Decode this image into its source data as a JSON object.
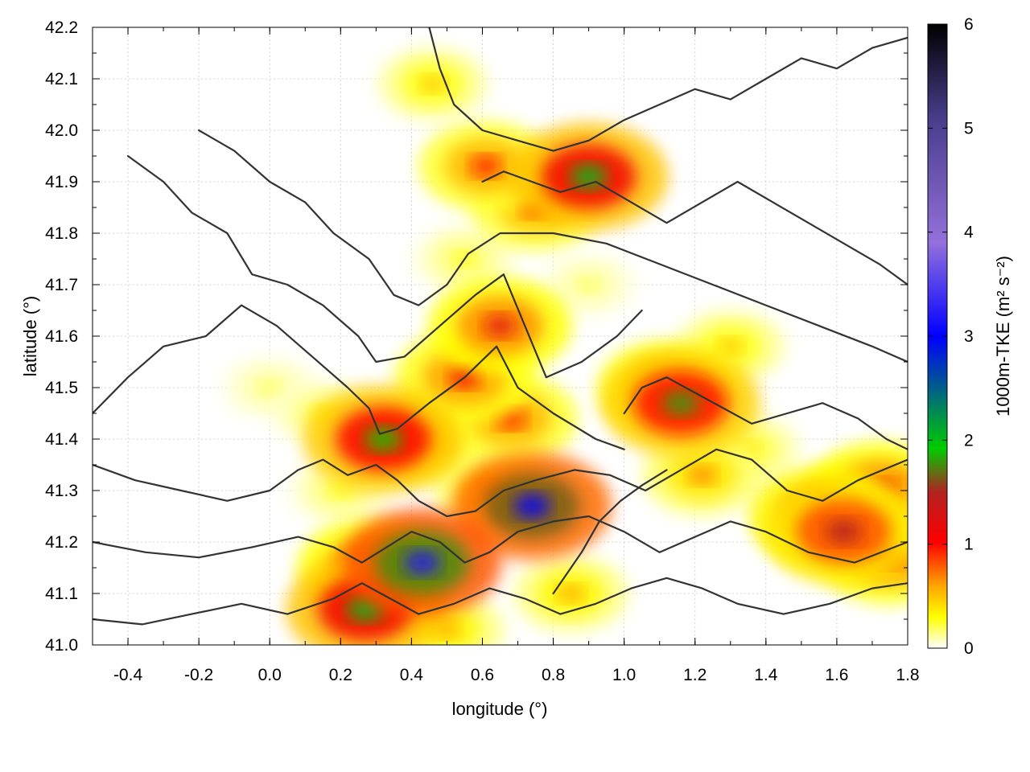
{
  "chart_data": {
    "type": "heatmap",
    "xlabel": "longitude (°)",
    "ylabel": "latitude (°)",
    "xlim": [
      -0.5,
      1.8
    ],
    "ylim": [
      41.0,
      42.2
    ],
    "x_ticks": [
      "-0.4",
      "-0.2",
      "0.0",
      "0.2",
      "0.4",
      "0.6",
      "0.8",
      "1.0",
      "1.2",
      "1.4",
      "1.6",
      "1.8"
    ],
    "x_tick_values": [
      -0.4,
      -0.2,
      0.0,
      0.2,
      0.4,
      0.6,
      0.8,
      1.0,
      1.2,
      1.4,
      1.6,
      1.8
    ],
    "y_ticks": [
      "41.0",
      "41.1",
      "41.2",
      "41.3",
      "41.4",
      "41.5",
      "41.6",
      "41.7",
      "41.8",
      "41.9",
      "42.0",
      "42.1",
      "42.2"
    ],
    "y_tick_values": [
      41.0,
      41.1,
      41.2,
      41.3,
      41.4,
      41.5,
      41.6,
      41.7,
      41.8,
      41.9,
      42.0,
      42.1,
      42.2
    ],
    "grid": true,
    "colorbar": {
      "label": "1000m-TKE (m² s⁻²)",
      "range": [
        0,
        6
      ],
      "ticks": [
        "0",
        "1",
        "2",
        "3",
        "4",
        "5",
        "6"
      ],
      "tick_values": [
        0,
        1,
        2,
        3,
        4,
        5,
        6
      ],
      "colors": [
        "#ffffff",
        "#ffff00",
        "#ffa500",
        "#ff0000",
        "#b22222",
        "#00cc00",
        "#0000ff",
        "#9370db",
        "#483d8b",
        "#000000"
      ]
    },
    "hotspots": [
      {
        "lon": 0.65,
        "lat": 41.62,
        "tke": 1.2
      },
      {
        "lon": 0.55,
        "lat": 41.52,
        "tke": 1.1
      },
      {
        "lon": 0.32,
        "lat": 41.4,
        "tke": 1.9
      },
      {
        "lon": 0.42,
        "lat": 41.4,
        "tke": 0.9
      },
      {
        "lon": 0.68,
        "lat": 41.44,
        "tke": 1.0
      },
      {
        "lon": 1.12,
        "lat": 41.5,
        "tke": 1.1
      },
      {
        "lon": 1.16,
        "lat": 41.47,
        "tke": 1.8
      },
      {
        "lon": 1.3,
        "lat": 41.58,
        "tke": 0.5
      },
      {
        "lon": 0.74,
        "lat": 41.27,
        "tke": 3.0
      },
      {
        "lon": 0.63,
        "lat": 41.3,
        "tke": 0.7
      },
      {
        "lon": 0.28,
        "lat": 41.15,
        "tke": 1.2
      },
      {
        "lon": 0.43,
        "lat": 41.16,
        "tke": 3.2
      },
      {
        "lon": 0.27,
        "lat": 41.07,
        "tke": 2.0
      },
      {
        "lon": 0.9,
        "lat": 41.91,
        "tke": 2.0
      },
      {
        "lon": 0.61,
        "lat": 41.93,
        "tke": 1.0
      },
      {
        "lon": 0.75,
        "lat": 41.85,
        "tke": 0.9
      },
      {
        "lon": 1.56,
        "lat": 41.25,
        "tke": 1.3
      },
      {
        "lon": 1.62,
        "lat": 41.22,
        "tke": 1.5
      },
      {
        "lon": 1.72,
        "lat": 41.3,
        "tke": 1.2
      },
      {
        "lon": 1.75,
        "lat": 41.17,
        "tke": 1.1
      },
      {
        "lon": 0.15,
        "lat": 41.45,
        "tke": 0.3
      },
      {
        "lon": 0.0,
        "lat": 41.5,
        "tke": 0.2
      },
      {
        "lon": 0.55,
        "lat": 41.75,
        "tke": 0.3
      },
      {
        "lon": 0.9,
        "lat": 41.7,
        "tke": 0.2
      },
      {
        "lon": 1.22,
        "lat": 41.33,
        "tke": 0.7
      },
      {
        "lon": 1.35,
        "lat": 41.38,
        "tke": 0.4
      },
      {
        "lon": 0.2,
        "lat": 41.3,
        "tke": 0.3
      },
      {
        "lon": 0.46,
        "lat": 42.09,
        "tke": 0.5
      },
      {
        "lon": 0.5,
        "lat": 41.03,
        "tke": 0.6
      },
      {
        "lon": 0.85,
        "lat": 41.1,
        "tke": 0.6
      }
    ],
    "contours": [
      [
        [
          -0.5,
          41.45
        ],
        [
          -0.4,
          41.52
        ],
        [
          -0.3,
          41.58
        ],
        [
          -0.18,
          41.6
        ],
        [
          -0.08,
          41.66
        ],
        [
          0.02,
          41.62
        ],
        [
          0.12,
          41.56
        ],
        [
          0.22,
          41.5
        ],
        [
          0.28,
          41.46
        ],
        [
          0.31,
          41.41
        ],
        [
          0.36,
          41.42
        ],
        [
          0.45,
          41.47
        ],
        [
          0.55,
          41.52
        ],
        [
          0.64,
          41.58
        ],
        [
          0.7,
          41.5
        ],
        [
          0.8,
          41.45
        ],
        [
          0.92,
          41.4
        ],
        [
          1.0,
          41.38
        ]
      ],
      [
        [
          -0.4,
          41.95
        ],
        [
          -0.3,
          41.9
        ],
        [
          -0.22,
          41.84
        ],
        [
          -0.12,
          41.8
        ],
        [
          -0.05,
          41.72
        ],
        [
          0.05,
          41.7
        ],
        [
          0.15,
          41.66
        ],
        [
          0.25,
          41.6
        ],
        [
          0.3,
          41.55
        ],
        [
          0.38,
          41.56
        ],
        [
          0.48,
          41.62
        ],
        [
          0.58,
          41.68
        ],
        [
          0.66,
          41.72
        ],
        [
          0.72,
          41.62
        ],
        [
          0.78,
          41.52
        ],
        [
          0.88,
          41.55
        ],
        [
          0.98,
          41.6
        ],
        [
          1.05,
          41.65
        ]
      ],
      [
        [
          -0.2,
          42.0
        ],
        [
          -0.1,
          41.96
        ],
        [
          0.0,
          41.9
        ],
        [
          0.1,
          41.86
        ],
        [
          0.18,
          41.8
        ],
        [
          0.28,
          41.75
        ],
        [
          0.35,
          41.68
        ],
        [
          0.42,
          41.66
        ],
        [
          0.5,
          41.7
        ],
        [
          0.56,
          41.76
        ],
        [
          0.65,
          41.8
        ],
        [
          0.8,
          41.8
        ],
        [
          0.95,
          41.78
        ],
        [
          1.1,
          41.74
        ],
        [
          1.25,
          41.7
        ],
        [
          1.4,
          41.66
        ],
        [
          1.55,
          41.62
        ],
        [
          1.7,
          41.58
        ],
        [
          1.8,
          41.55
        ]
      ],
      [
        [
          -0.5,
          41.35
        ],
        [
          -0.38,
          41.32
        ],
        [
          -0.25,
          41.3
        ],
        [
          -0.12,
          41.28
        ],
        [
          0.0,
          41.3
        ],
        [
          0.08,
          41.34
        ],
        [
          0.15,
          41.36
        ],
        [
          0.22,
          41.33
        ],
        [
          0.3,
          41.35
        ],
        [
          0.36,
          41.32
        ],
        [
          0.42,
          41.28
        ],
        [
          0.5,
          41.25
        ],
        [
          0.58,
          41.26
        ],
        [
          0.66,
          41.3
        ],
        [
          0.75,
          41.32
        ],
        [
          0.86,
          41.34
        ],
        [
          0.96,
          41.33
        ],
        [
          1.06,
          41.3
        ],
        [
          1.16,
          41.34
        ],
        [
          1.26,
          41.38
        ],
        [
          1.36,
          41.36
        ],
        [
          1.46,
          41.3
        ],
        [
          1.56,
          41.28
        ],
        [
          1.66,
          41.32
        ],
        [
          1.8,
          41.36
        ]
      ],
      [
        [
          -0.5,
          41.2
        ],
        [
          -0.35,
          41.18
        ],
        [
          -0.2,
          41.17
        ],
        [
          -0.05,
          41.19
        ],
        [
          0.08,
          41.21
        ],
        [
          0.18,
          41.19
        ],
        [
          0.26,
          41.16
        ],
        [
          0.33,
          41.19
        ],
        [
          0.4,
          41.22
        ],
        [
          0.48,
          41.2
        ],
        [
          0.55,
          41.16
        ],
        [
          0.62,
          41.18
        ],
        [
          0.7,
          41.22
        ],
        [
          0.8,
          41.24
        ],
        [
          0.9,
          41.25
        ],
        [
          1.0,
          41.22
        ],
        [
          1.1,
          41.18
        ],
        [
          1.2,
          41.21
        ],
        [
          1.3,
          41.24
        ],
        [
          1.4,
          41.22
        ],
        [
          1.52,
          41.18
        ],
        [
          1.65,
          41.16
        ],
        [
          1.8,
          41.2
        ]
      ],
      [
        [
          -0.5,
          41.05
        ],
        [
          -0.36,
          41.04
        ],
        [
          -0.22,
          41.06
        ],
        [
          -0.08,
          41.08
        ],
        [
          0.05,
          41.06
        ],
        [
          0.18,
          41.09
        ],
        [
          0.26,
          41.12
        ],
        [
          0.34,
          41.09
        ],
        [
          0.42,
          41.06
        ],
        [
          0.52,
          41.08
        ],
        [
          0.62,
          41.11
        ],
        [
          0.72,
          41.09
        ],
        [
          0.82,
          41.06
        ],
        [
          0.92,
          41.08
        ],
        [
          1.02,
          41.11
        ],
        [
          1.12,
          41.13
        ],
        [
          1.22,
          41.11
        ],
        [
          1.32,
          41.08
        ],
        [
          1.45,
          41.06
        ],
        [
          1.58,
          41.08
        ],
        [
          1.7,
          41.11
        ],
        [
          1.8,
          41.12
        ]
      ],
      [
        [
          0.45,
          42.2
        ],
        [
          0.48,
          42.12
        ],
        [
          0.52,
          42.05
        ],
        [
          0.6,
          42.0
        ],
        [
          0.7,
          41.98
        ],
        [
          0.8,
          41.96
        ],
        [
          0.9,
          41.98
        ],
        [
          1.0,
          42.02
        ],
        [
          1.1,
          42.05
        ],
        [
          1.2,
          42.08
        ],
        [
          1.3,
          42.06
        ],
        [
          1.4,
          42.1
        ],
        [
          1.5,
          42.14
        ],
        [
          1.6,
          42.12
        ],
        [
          1.7,
          42.16
        ],
        [
          1.8,
          42.18
        ]
      ],
      [
        [
          0.6,
          41.9
        ],
        [
          0.66,
          41.92
        ],
        [
          0.74,
          41.9
        ],
        [
          0.82,
          41.88
        ],
        [
          0.92,
          41.9
        ],
        [
          1.02,
          41.86
        ],
        [
          1.12,
          41.82
        ],
        [
          1.22,
          41.86
        ],
        [
          1.32,
          41.9
        ],
        [
          1.42,
          41.86
        ],
        [
          1.52,
          41.82
        ],
        [
          1.62,
          41.78
        ],
        [
          1.72,
          41.74
        ],
        [
          1.8,
          41.7
        ]
      ],
      [
        [
          1.0,
          41.45
        ],
        [
          1.05,
          41.5
        ],
        [
          1.12,
          41.52
        ],
        [
          1.2,
          41.49
        ],
        [
          1.28,
          41.46
        ],
        [
          1.36,
          41.43
        ],
        [
          1.46,
          41.45
        ],
        [
          1.56,
          41.47
        ],
        [
          1.66,
          41.44
        ],
        [
          1.74,
          41.4
        ],
        [
          1.8,
          41.38
        ]
      ],
      [
        [
          0.8,
          41.1
        ],
        [
          0.84,
          41.14
        ],
        [
          0.88,
          41.18
        ],
        [
          0.93,
          41.24
        ],
        [
          0.99,
          41.28
        ],
        [
          1.05,
          41.31
        ],
        [
          1.12,
          41.34
        ]
      ]
    ]
  }
}
